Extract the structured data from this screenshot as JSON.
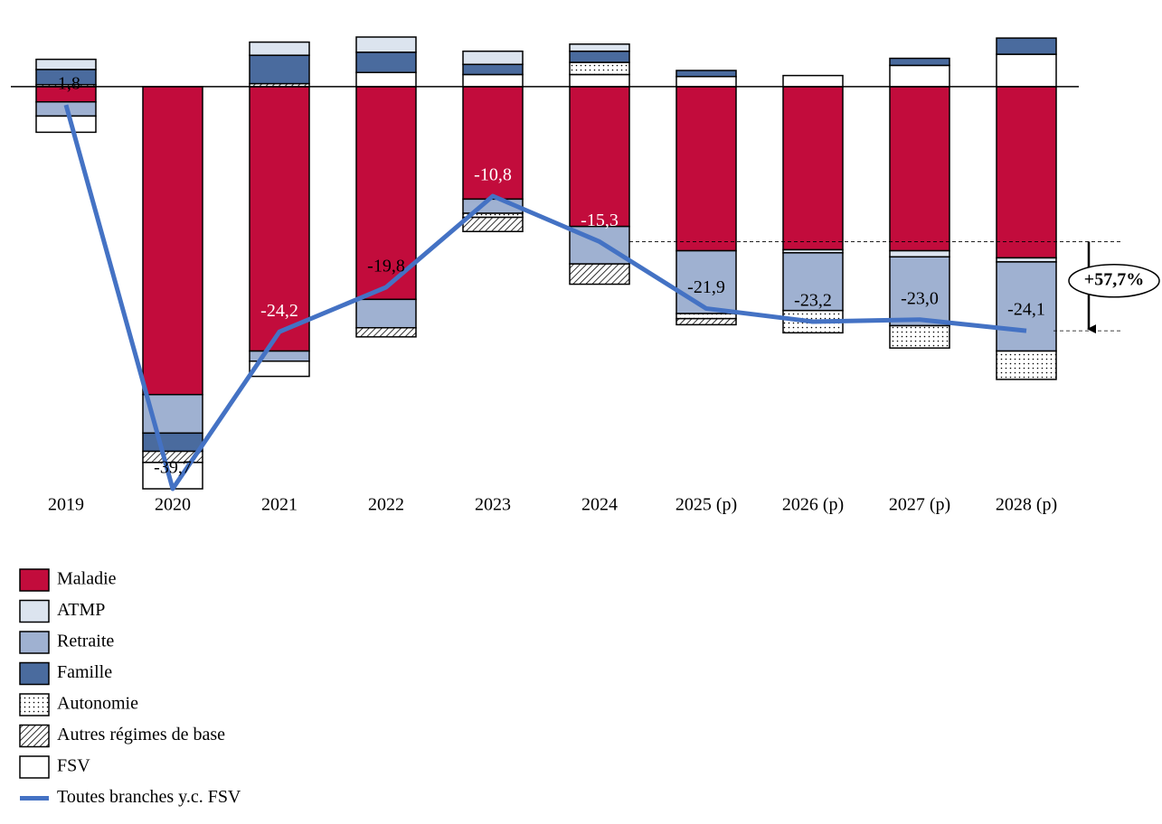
{
  "chart_data": {
    "type": "bar",
    "categories": [
      "2019",
      "2020",
      "2021",
      "2022",
      "2023",
      "2024",
      "2025 (p)",
      "2026 (p)",
      "2027 (p)",
      "2028 (p)"
    ],
    "series": [
      {
        "name": "Maladie",
        "color": "#c20c3c",
        "values": [
          -1.5,
          -30.4,
          -26.1,
          -21.0,
          -11.1,
          -13.8,
          -16.2,
          -16.1,
          -16.2,
          -16.9
        ]
      },
      {
        "name": "ATMP",
        "color": "#dce4ef",
        "values": [
          1.0,
          0,
          1.3,
          1.5,
          1.3,
          0.7,
          0,
          -0.3,
          -0.6,
          -0.4
        ]
      },
      {
        "name": "Retraite",
        "color": "#9fb1d1",
        "values": [
          -1.4,
          -3.8,
          -1.0,
          -2.8,
          -1.4,
          -3.7,
          -6.2,
          -5.7,
          -6.8,
          -8.8
        ]
      },
      {
        "name": "Famille",
        "color": "#4a6b9e",
        "values": [
          1.5,
          -1.8,
          2.8,
          2.0,
          1.0,
          1.1,
          0.6,
          0,
          0.7,
          1.6
        ]
      },
      {
        "name": "Autonomie",
        "color": "#ffffff",
        "pattern": "dots",
        "values": [
          0,
          0,
          0,
          0,
          -0.4,
          1.2,
          -0.5,
          -2.2,
          -2.2,
          -2.8
        ]
      },
      {
        "name": "Autres régimes de base",
        "color": "#ffffff",
        "pattern": "hatch",
        "values": [
          0.2,
          -1.1,
          0.3,
          -0.9,
          -1.4,
          -2.0,
          -0.6,
          0,
          0,
          0
        ]
      },
      {
        "name": "FSV",
        "color": "#ffffff",
        "values": [
          -1.6,
          -2.6,
          -1.5,
          1.4,
          1.2,
          1.2,
          1.0,
          1.1,
          2.1,
          3.2
        ]
      }
    ],
    "line": {
      "name": "Toutes branches y.c. FSV",
      "color": "#4472c4",
      "values": [
        -1.8,
        -39.7,
        -24.2,
        -19.8,
        -10.8,
        -15.3,
        -21.9,
        -23.2,
        -23.0,
        -24.1
      ],
      "value_labels": [
        "-1,8",
        "-39,7",
        "-24,2",
        "-19,8",
        "-10,8",
        "-15,3",
        "-21,9",
        "-23,2",
        "-23,0",
        "-24,1"
      ]
    },
    "annotation": "+57,7%"
  }
}
